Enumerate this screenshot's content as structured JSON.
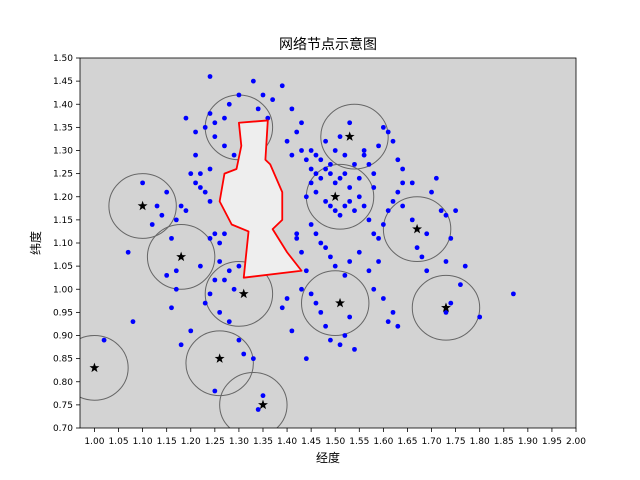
{
  "chart_data": {
    "type": "scatter",
    "title": "网络节点示意图",
    "xlabel": "经度",
    "ylabel": "纬度",
    "xlim": [
      0.97,
      2.0
    ],
    "ylim": [
      0.7,
      1.5
    ],
    "x_ticks": [
      "1.00",
      "1.05",
      "1.10",
      "1.15",
      "1.20",
      "1.25",
      "1.30",
      "1.35",
      "1.40",
      "1.45",
      "1.50",
      "1.55",
      "1.60",
      "1.65",
      "1.70",
      "1.75",
      "1.80",
      "1.85",
      "1.90",
      "1.95",
      "2.00"
    ],
    "y_ticks": [
      "0.70",
      "0.75",
      "0.80",
      "0.85",
      "0.90",
      "0.95",
      "1.00",
      "1.05",
      "1.10",
      "1.15",
      "1.20",
      "1.25",
      "1.30",
      "1.35",
      "1.40",
      "1.45",
      "1.50"
    ],
    "grid": false,
    "background": "#d3d3d3",
    "colors": {
      "nodes": "#0000ff",
      "centers": "#000000",
      "coverage": "#666666",
      "region_edge": "#ff0000",
      "region_fill": "#eeeeee"
    },
    "coverage_radius": 0.07,
    "centers": [
      {
        "x": 1.0,
        "y": 0.83
      },
      {
        "x": 1.1,
        "y": 1.18
      },
      {
        "x": 1.18,
        "y": 1.07
      },
      {
        "x": 1.26,
        "y": 0.85
      },
      {
        "x": 1.31,
        "y": 0.99
      },
      {
        "x": 1.35,
        "y": 0.75
      },
      {
        "x": 1.51,
        "y": 0.97
      },
      {
        "x": 1.53,
        "y": 1.33
      },
      {
        "x": 1.5,
        "y": 1.2
      },
      {
        "x": 1.67,
        "y": 1.13
      },
      {
        "x": 1.73,
        "y": 0.96
      }
    ],
    "coverage_circles": [
      {
        "x": 1.0,
        "y": 0.83
      },
      {
        "x": 1.1,
        "y": 1.18
      },
      {
        "x": 1.18,
        "y": 1.07
      },
      {
        "x": 1.26,
        "y": 0.84
      },
      {
        "x": 1.3,
        "y": 0.99
      },
      {
        "x": 1.3,
        "y": 1.35
      },
      {
        "x": 1.33,
        "y": 0.75
      },
      {
        "x": 1.5,
        "y": 0.97
      },
      {
        "x": 1.54,
        "y": 1.33
      },
      {
        "x": 1.51,
        "y": 1.2
      },
      {
        "x": 1.67,
        "y": 1.13
      },
      {
        "x": 1.73,
        "y": 0.96
      }
    ],
    "region": [
      [
        1.3,
        1.36
      ],
      [
        1.36,
        1.365
      ],
      [
        1.355,
        1.28
      ],
      [
        1.365,
        1.27
      ],
      [
        1.39,
        1.21
      ],
      [
        1.39,
        1.15
      ],
      [
        1.37,
        1.13
      ],
      [
        1.4,
        1.08
      ],
      [
        1.43,
        1.04
      ],
      [
        1.31,
        1.025
      ],
      [
        1.32,
        1.125
      ],
      [
        1.285,
        1.14
      ],
      [
        1.26,
        1.19
      ],
      [
        1.27,
        1.25
      ],
      [
        1.295,
        1.26
      ],
      [
        1.305,
        1.31
      ],
      [
        1.3,
        1.36
      ]
    ],
    "nodes": [
      [
        1.02,
        0.89
      ],
      [
        1.08,
        0.93
      ],
      [
        1.07,
        1.08
      ],
      [
        1.1,
        1.23
      ],
      [
        1.12,
        1.14
      ],
      [
        1.13,
        1.18
      ],
      [
        1.14,
        1.16
      ],
      [
        1.15,
        1.21
      ],
      [
        1.16,
        1.11
      ],
      [
        1.17,
        1.15
      ],
      [
        1.18,
        1.18
      ],
      [
        1.19,
        1.17
      ],
      [
        1.15,
        1.03
      ],
      [
        1.17,
        1.04
      ],
      [
        1.17,
        1.0
      ],
      [
        1.18,
        0.88
      ],
      [
        1.16,
        0.96
      ],
      [
        1.2,
        0.91
      ],
      [
        1.2,
        1.25
      ],
      [
        1.21,
        1.23
      ],
      [
        1.21,
        1.34
      ],
      [
        1.19,
        1.37
      ],
      [
        1.21,
        1.29
      ],
      [
        1.22,
        1.25
      ],
      [
        1.22,
        1.22
      ],
      [
        1.23,
        1.21
      ],
      [
        1.24,
        1.26
      ],
      [
        1.24,
        1.19
      ],
      [
        1.23,
        1.35
      ],
      [
        1.24,
        1.38
      ],
      [
        1.25,
        1.33
      ],
      [
        1.25,
        1.36
      ],
      [
        1.24,
        1.46
      ],
      [
        1.27,
        1.37
      ],
      [
        1.28,
        1.4
      ],
      [
        1.3,
        1.42
      ],
      [
        1.27,
        1.31
      ],
      [
        1.29,
        1.29
      ],
      [
        1.28,
        1.24
      ],
      [
        1.33,
        1.45
      ],
      [
        1.34,
        1.39
      ],
      [
        1.35,
        1.42
      ],
      [
        1.36,
        1.37
      ],
      [
        1.37,
        1.41
      ],
      [
        1.39,
        1.44
      ],
      [
        1.41,
        1.39
      ],
      [
        1.42,
        1.34
      ],
      [
        1.4,
        1.32
      ],
      [
        1.43,
        1.36
      ],
      [
        1.41,
        1.29
      ],
      [
        1.43,
        1.3
      ],
      [
        1.44,
        1.28
      ],
      [
        1.45,
        1.26
      ],
      [
        1.46,
        1.25
      ],
      [
        1.47,
        1.24
      ],
      [
        1.48,
        1.26
      ],
      [
        1.49,
        1.27
      ],
      [
        1.5,
        1.23
      ],
      [
        1.51,
        1.24
      ],
      [
        1.52,
        1.25
      ],
      [
        1.53,
        1.22
      ],
      [
        1.54,
        1.27
      ],
      [
        1.55,
        1.24
      ],
      [
        1.56,
        1.29
      ],
      [
        1.57,
        1.27
      ],
      [
        1.58,
        1.25
      ],
      [
        1.59,
        1.31
      ],
      [
        1.6,
        1.35
      ],
      [
        1.61,
        1.34
      ],
      [
        1.62,
        1.32
      ],
      [
        1.63,
        1.28
      ],
      [
        1.64,
        1.26
      ],
      [
        1.48,
        1.32
      ],
      [
        1.5,
        1.3
      ],
      [
        1.51,
        1.33
      ],
      [
        1.52,
        1.29
      ],
      [
        1.45,
        1.3
      ],
      [
        1.46,
        1.29
      ],
      [
        1.47,
        1.28
      ],
      [
        1.49,
        1.25
      ],
      [
        1.53,
        1.36
      ],
      [
        1.56,
        1.3
      ],
      [
        1.58,
        1.22
      ],
      [
        1.45,
        1.23
      ],
      [
        1.44,
        1.2
      ],
      [
        1.46,
        1.21
      ],
      [
        1.48,
        1.19
      ],
      [
        1.49,
        1.18
      ],
      [
        1.5,
        1.17
      ],
      [
        1.51,
        1.16
      ],
      [
        1.52,
        1.18
      ],
      [
        1.53,
        1.19
      ],
      [
        1.54,
        1.17
      ],
      [
        1.55,
        1.2
      ],
      [
        1.56,
        1.18
      ],
      [
        1.57,
        1.15
      ],
      [
        1.58,
        1.12
      ],
      [
        1.59,
        1.11
      ],
      [
        1.6,
        1.14
      ],
      [
        1.61,
        1.17
      ],
      [
        1.62,
        1.19
      ],
      [
        1.63,
        1.21
      ],
      [
        1.64,
        1.23
      ],
      [
        1.45,
        1.14
      ],
      [
        1.46,
        1.12
      ],
      [
        1.47,
        1.1
      ],
      [
        1.48,
        1.09
      ],
      [
        1.49,
        1.07
      ],
      [
        1.5,
        1.05
      ],
      [
        1.52,
        1.03
      ],
      [
        1.53,
        1.06
      ],
      [
        1.55,
        1.08
      ],
      [
        1.57,
        1.04
      ],
      [
        1.58,
        1.0
      ],
      [
        1.6,
        0.98
      ],
      [
        1.62,
        0.95
      ],
      [
        1.63,
        0.92
      ],
      [
        1.61,
        0.93
      ],
      [
        1.59,
        1.06
      ],
      [
        1.42,
        1.11
      ],
      [
        1.43,
        1.08
      ],
      [
        1.44,
        1.04
      ],
      [
        1.45,
        0.99
      ],
      [
        1.46,
        0.97
      ],
      [
        1.47,
        0.95
      ],
      [
        1.48,
        0.92
      ],
      [
        1.49,
        0.89
      ],
      [
        1.51,
        0.88
      ],
      [
        1.52,
        0.9
      ],
      [
        1.53,
        0.94
      ],
      [
        1.54,
        0.87
      ],
      [
        1.44,
        0.85
      ],
      [
        1.4,
        0.98
      ],
      [
        1.41,
        0.91
      ],
      [
        1.39,
        0.96
      ],
      [
        1.24,
        1.11
      ],
      [
        1.25,
        1.12
      ],
      [
        1.26,
        1.1
      ],
      [
        1.27,
        1.12
      ],
      [
        1.26,
        1.06
      ],
      [
        1.25,
        1.02
      ],
      [
        1.27,
        1.02
      ],
      [
        1.28,
        1.04
      ],
      [
        1.29,
        1.0
      ],
      [
        1.3,
        1.05
      ],
      [
        1.22,
        1.05
      ],
      [
        1.24,
        0.99
      ],
      [
        1.23,
        0.97
      ],
      [
        1.26,
        0.95
      ],
      [
        1.28,
        0.93
      ],
      [
        1.3,
        0.89
      ],
      [
        1.31,
        0.86
      ],
      [
        1.33,
        0.85
      ],
      [
        1.25,
        0.78
      ],
      [
        1.34,
        0.74
      ],
      [
        1.35,
        0.77
      ],
      [
        1.42,
        1.12
      ],
      [
        1.43,
        1.0
      ],
      [
        1.66,
        1.15
      ],
      [
        1.67,
        1.09
      ],
      [
        1.68,
        1.07
      ],
      [
        1.69,
        1.12
      ],
      [
        1.7,
        1.21
      ],
      [
        1.71,
        1.24
      ],
      [
        1.72,
        1.17
      ],
      [
        1.73,
        1.16
      ],
      [
        1.74,
        1.11
      ],
      [
        1.75,
        1.17
      ],
      [
        1.69,
        1.04
      ],
      [
        1.73,
        1.06
      ],
      [
        1.74,
        0.97
      ],
      [
        1.76,
        1.01
      ],
      [
        1.73,
        0.95
      ],
      [
        1.77,
        1.05
      ],
      [
        1.8,
        0.94
      ],
      [
        1.87,
        0.99
      ],
      [
        1.66,
        1.23
      ],
      [
        1.64,
        1.18
      ]
    ]
  }
}
